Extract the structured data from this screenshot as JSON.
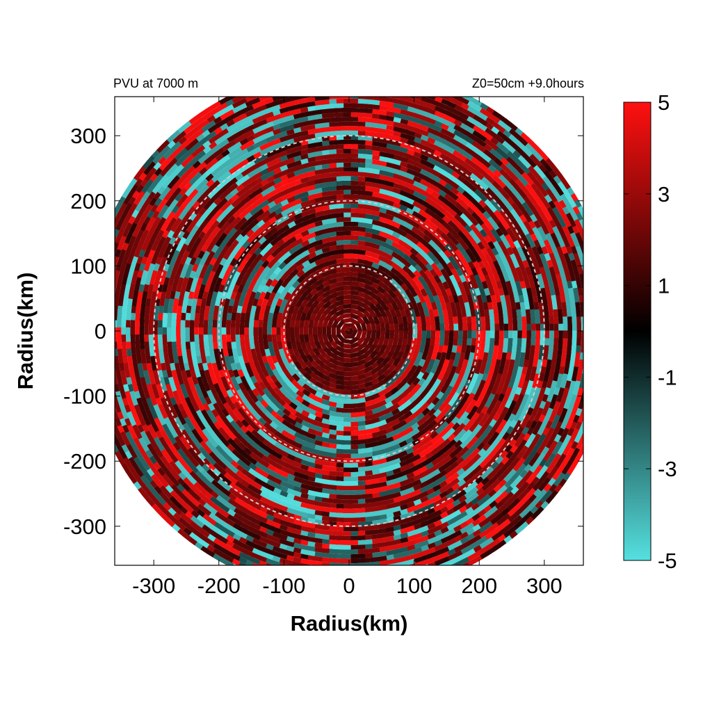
{
  "chart_data": {
    "type": "heatmap",
    "projection": "polar-disk",
    "title_left": "PVU at  7000 m",
    "title_right": "Z0=50cm  +9.0hours",
    "xlabel": "Radius(km)",
    "ylabel": "Radius(km)",
    "xlim": [
      -360,
      360
    ],
    "ylim": [
      -360,
      360
    ],
    "x_ticks": [
      -300,
      -200,
      -100,
      0,
      100,
      200,
      300
    ],
    "y_ticks": [
      -300,
      -200,
      -100,
      0,
      100,
      200,
      300
    ],
    "x_tick_labels": [
      "-300",
      "-200",
      "-100",
      "0",
      "100",
      "200",
      "300"
    ],
    "y_tick_labels": [
      "-300",
      "-200",
      "-100",
      "0",
      "100",
      "200",
      "300"
    ],
    "domain_radius_km": 400,
    "reference_circles_km": [
      100,
      200,
      300
    ],
    "colorbar": {
      "min": -5,
      "max": 5,
      "ticks": [
        5,
        3,
        1,
        -1,
        -3,
        -5
      ],
      "tick_labels": [
        "5",
        "3",
        "1",
        "-1",
        "-3",
        "-5"
      ],
      "colors": {
        "low": "#55e0e0",
        "mid": "#000000",
        "high": "#ff1010"
      }
    },
    "field_description_values": {
      "inner_core_value_range": [
        1,
        2.5
      ],
      "annulus_value_range": [
        -5,
        5
      ]
    },
    "grid": false,
    "legend": "colorbar-right"
  }
}
